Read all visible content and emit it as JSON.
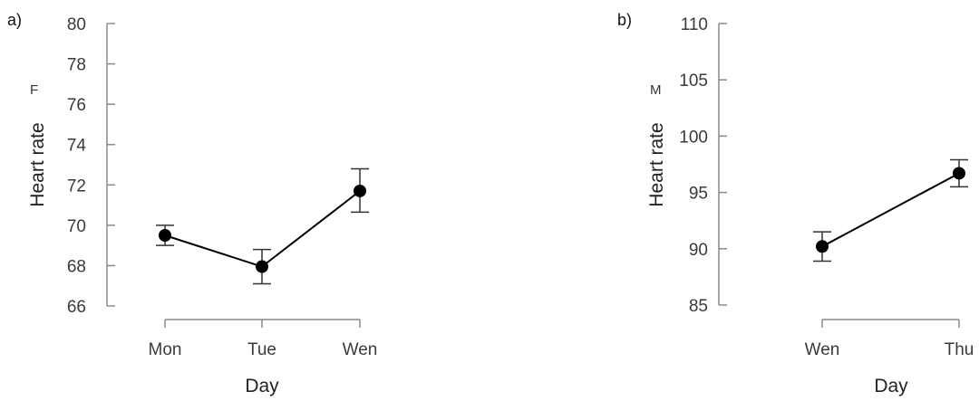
{
  "chart_data": [
    {
      "type": "line",
      "panel_label": "a)",
      "group_label": "F",
      "xlabel": "Day",
      "ylabel": "Heart rate",
      "categories": [
        "Mon",
        "Tue",
        "Wen"
      ],
      "values": [
        69.5,
        67.95,
        71.7
      ],
      "error_low": [
        69.0,
        67.1,
        70.65
      ],
      "error_high": [
        70.0,
        68.8,
        72.8
      ],
      "ylim": [
        66,
        80
      ],
      "yticks": [
        66,
        68,
        70,
        72,
        74,
        76,
        78,
        80
      ],
      "grid": false,
      "color": "#000000"
    },
    {
      "type": "line",
      "panel_label": "b)",
      "group_label": "M",
      "xlabel": "Day",
      "ylabel": "Heart rate",
      "categories": [
        "Wen",
        "Thu"
      ],
      "values": [
        90.2,
        96.7
      ],
      "error_low": [
        88.9,
        95.5
      ],
      "error_high": [
        91.5,
        97.9
      ],
      "ylim": [
        85,
        110
      ],
      "yticks": [
        85,
        90,
        95,
        100,
        105,
        110
      ],
      "grid": false,
      "color": "#000000"
    }
  ]
}
